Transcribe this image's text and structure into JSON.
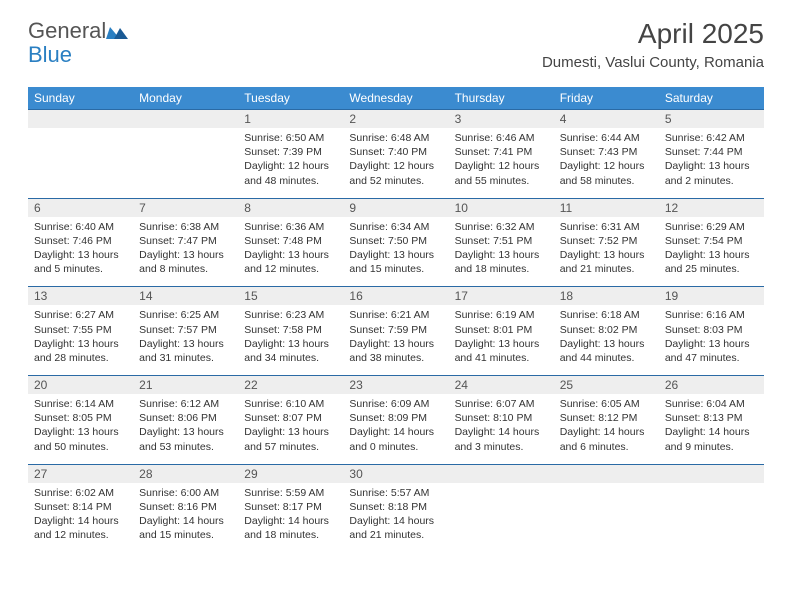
{
  "brand": {
    "part1": "General",
    "part2": "Blue"
  },
  "title": "April 2025",
  "location": "Dumesti, Vaslui County, Romania",
  "colors": {
    "header_bg": "#3b8bd0",
    "header_text": "#ffffff",
    "accent_line": "#2a6aa5",
    "daynum_bg": "#eeeeee",
    "brand_blue": "#2a7fc2"
  },
  "dayNames": [
    "Sunday",
    "Monday",
    "Tuesday",
    "Wednesday",
    "Thursday",
    "Friday",
    "Saturday"
  ],
  "weeks": [
    [
      null,
      null,
      {
        "n": "1",
        "sr": "Sunrise: 6:50 AM",
        "ss": "Sunset: 7:39 PM",
        "dl": "Daylight: 12 hours and 48 minutes."
      },
      {
        "n": "2",
        "sr": "Sunrise: 6:48 AM",
        "ss": "Sunset: 7:40 PM",
        "dl": "Daylight: 12 hours and 52 minutes."
      },
      {
        "n": "3",
        "sr": "Sunrise: 6:46 AM",
        "ss": "Sunset: 7:41 PM",
        "dl": "Daylight: 12 hours and 55 minutes."
      },
      {
        "n": "4",
        "sr": "Sunrise: 6:44 AM",
        "ss": "Sunset: 7:43 PM",
        "dl": "Daylight: 12 hours and 58 minutes."
      },
      {
        "n": "5",
        "sr": "Sunrise: 6:42 AM",
        "ss": "Sunset: 7:44 PM",
        "dl": "Daylight: 13 hours and 2 minutes."
      }
    ],
    [
      {
        "n": "6",
        "sr": "Sunrise: 6:40 AM",
        "ss": "Sunset: 7:46 PM",
        "dl": "Daylight: 13 hours and 5 minutes."
      },
      {
        "n": "7",
        "sr": "Sunrise: 6:38 AM",
        "ss": "Sunset: 7:47 PM",
        "dl": "Daylight: 13 hours and 8 minutes."
      },
      {
        "n": "8",
        "sr": "Sunrise: 6:36 AM",
        "ss": "Sunset: 7:48 PM",
        "dl": "Daylight: 13 hours and 12 minutes."
      },
      {
        "n": "9",
        "sr": "Sunrise: 6:34 AM",
        "ss": "Sunset: 7:50 PM",
        "dl": "Daylight: 13 hours and 15 minutes."
      },
      {
        "n": "10",
        "sr": "Sunrise: 6:32 AM",
        "ss": "Sunset: 7:51 PM",
        "dl": "Daylight: 13 hours and 18 minutes."
      },
      {
        "n": "11",
        "sr": "Sunrise: 6:31 AM",
        "ss": "Sunset: 7:52 PM",
        "dl": "Daylight: 13 hours and 21 minutes."
      },
      {
        "n": "12",
        "sr": "Sunrise: 6:29 AM",
        "ss": "Sunset: 7:54 PM",
        "dl": "Daylight: 13 hours and 25 minutes."
      }
    ],
    [
      {
        "n": "13",
        "sr": "Sunrise: 6:27 AM",
        "ss": "Sunset: 7:55 PM",
        "dl": "Daylight: 13 hours and 28 minutes."
      },
      {
        "n": "14",
        "sr": "Sunrise: 6:25 AM",
        "ss": "Sunset: 7:57 PM",
        "dl": "Daylight: 13 hours and 31 minutes."
      },
      {
        "n": "15",
        "sr": "Sunrise: 6:23 AM",
        "ss": "Sunset: 7:58 PM",
        "dl": "Daylight: 13 hours and 34 minutes."
      },
      {
        "n": "16",
        "sr": "Sunrise: 6:21 AM",
        "ss": "Sunset: 7:59 PM",
        "dl": "Daylight: 13 hours and 38 minutes."
      },
      {
        "n": "17",
        "sr": "Sunrise: 6:19 AM",
        "ss": "Sunset: 8:01 PM",
        "dl": "Daylight: 13 hours and 41 minutes."
      },
      {
        "n": "18",
        "sr": "Sunrise: 6:18 AM",
        "ss": "Sunset: 8:02 PM",
        "dl": "Daylight: 13 hours and 44 minutes."
      },
      {
        "n": "19",
        "sr": "Sunrise: 6:16 AM",
        "ss": "Sunset: 8:03 PM",
        "dl": "Daylight: 13 hours and 47 minutes."
      }
    ],
    [
      {
        "n": "20",
        "sr": "Sunrise: 6:14 AM",
        "ss": "Sunset: 8:05 PM",
        "dl": "Daylight: 13 hours and 50 minutes."
      },
      {
        "n": "21",
        "sr": "Sunrise: 6:12 AM",
        "ss": "Sunset: 8:06 PM",
        "dl": "Daylight: 13 hours and 53 minutes."
      },
      {
        "n": "22",
        "sr": "Sunrise: 6:10 AM",
        "ss": "Sunset: 8:07 PM",
        "dl": "Daylight: 13 hours and 57 minutes."
      },
      {
        "n": "23",
        "sr": "Sunrise: 6:09 AM",
        "ss": "Sunset: 8:09 PM",
        "dl": "Daylight: 14 hours and 0 minutes."
      },
      {
        "n": "24",
        "sr": "Sunrise: 6:07 AM",
        "ss": "Sunset: 8:10 PM",
        "dl": "Daylight: 14 hours and 3 minutes."
      },
      {
        "n": "25",
        "sr": "Sunrise: 6:05 AM",
        "ss": "Sunset: 8:12 PM",
        "dl": "Daylight: 14 hours and 6 minutes."
      },
      {
        "n": "26",
        "sr": "Sunrise: 6:04 AM",
        "ss": "Sunset: 8:13 PM",
        "dl": "Daylight: 14 hours and 9 minutes."
      }
    ],
    [
      {
        "n": "27",
        "sr": "Sunrise: 6:02 AM",
        "ss": "Sunset: 8:14 PM",
        "dl": "Daylight: 14 hours and 12 minutes."
      },
      {
        "n": "28",
        "sr": "Sunrise: 6:00 AM",
        "ss": "Sunset: 8:16 PM",
        "dl": "Daylight: 14 hours and 15 minutes."
      },
      {
        "n": "29",
        "sr": "Sunrise: 5:59 AM",
        "ss": "Sunset: 8:17 PM",
        "dl": "Daylight: 14 hours and 18 minutes."
      },
      {
        "n": "30",
        "sr": "Sunrise: 5:57 AM",
        "ss": "Sunset: 8:18 PM",
        "dl": "Daylight: 14 hours and 21 minutes."
      },
      null,
      null,
      null
    ]
  ]
}
